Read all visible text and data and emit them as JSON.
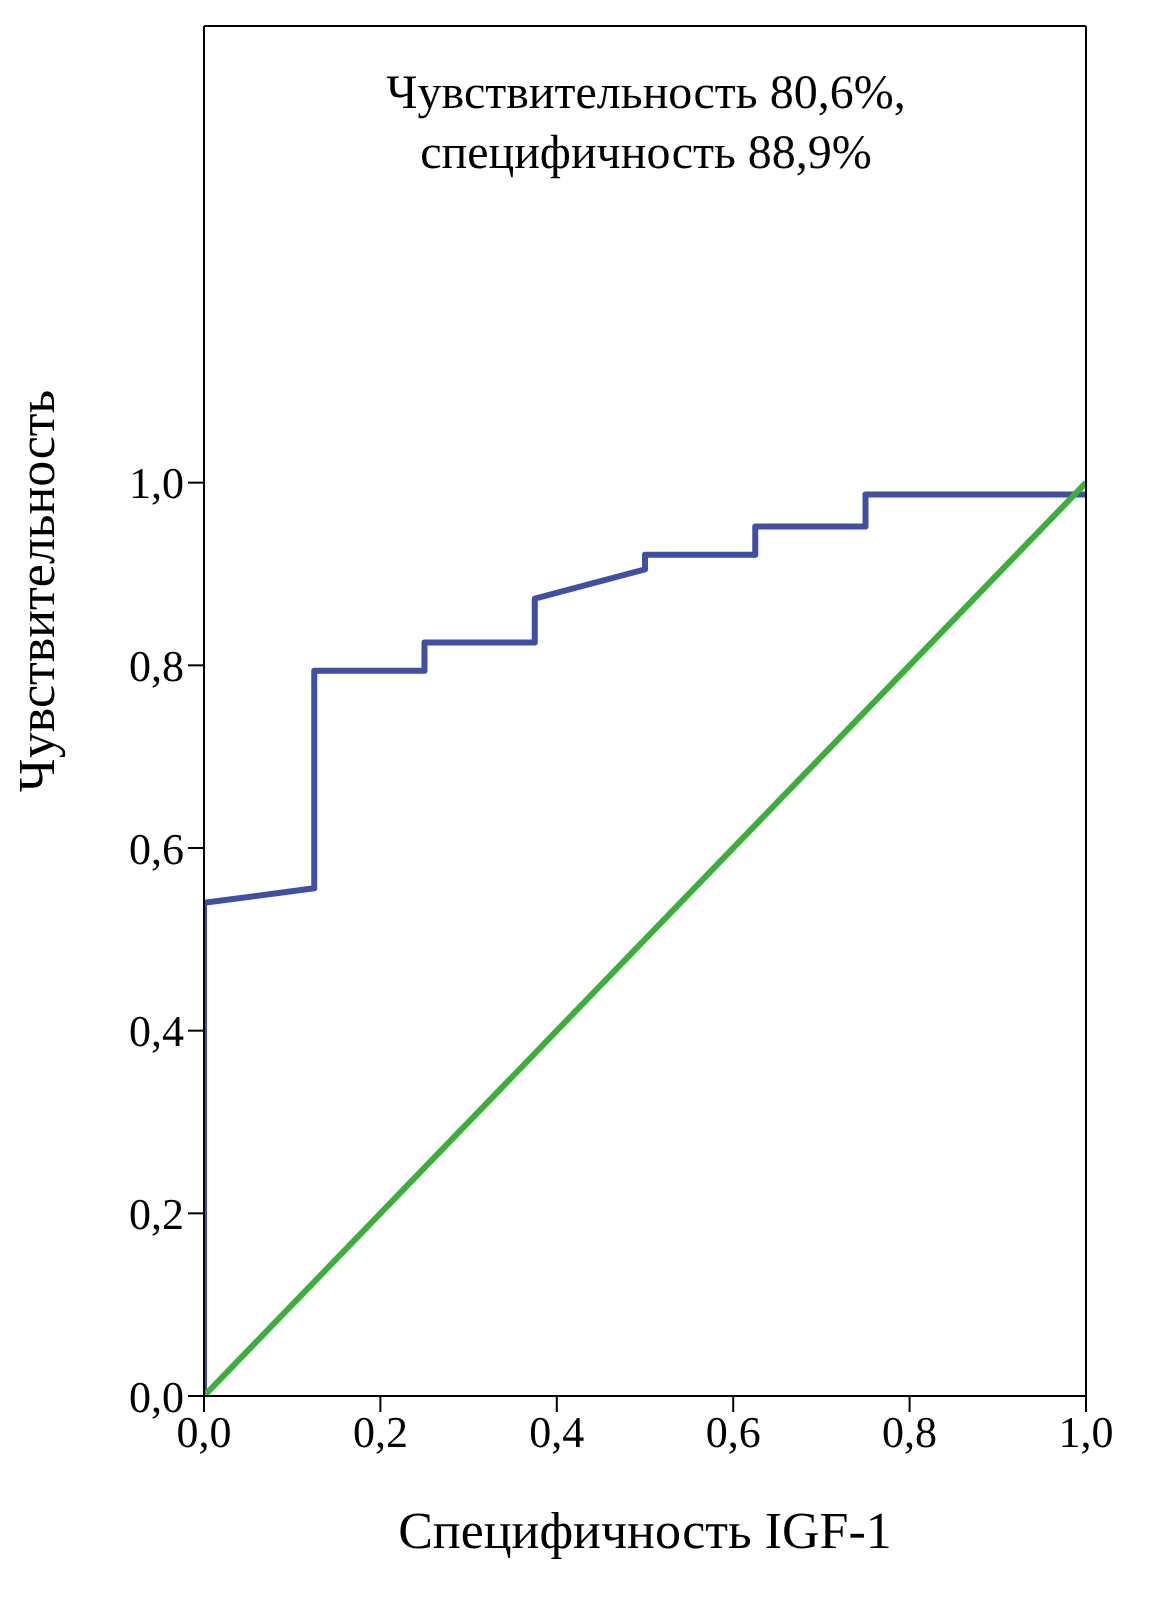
{
  "chart_data": {
    "type": "line",
    "xlabel": "Специфичность IGF-1",
    "ylabel": "Чувствительность",
    "annotations": [
      "Чувствительность 80,6%,",
      "специфичность 88,9%"
    ],
    "series": [
      {
        "color": "#3f4fa3",
        "x": [
          0,
          0,
          0.125,
          0.125,
          0.25,
          0.25,
          0.375,
          0.375,
          0.5,
          0.5,
          0.625,
          0.625,
          0.75,
          0.75,
          1
        ],
        "values": [
          0,
          0.54,
          0.556,
          0.794,
          0.794,
          0.825,
          0.825,
          0.873,
          0.905,
          0.921,
          0.921,
          0.952,
          0.952,
          0.987,
          0.987
        ]
      },
      {
        "color": "#3cae3c",
        "x": [
          0,
          1
        ],
        "values": [
          0,
          1
        ]
      }
    ],
    "xlim": [
      0,
      1
    ],
    "ylim": [
      0,
      1.5
    ],
    "xticks": [
      {
        "value": 0,
        "label": "0,0"
      },
      {
        "value": 0.2,
        "label": "0,2"
      },
      {
        "value": 0.4,
        "label": "0,4"
      },
      {
        "value": 0.6,
        "label": "0,6"
      },
      {
        "value": 0.8,
        "label": "0,8"
      },
      {
        "value": 1,
        "label": "1,0"
      }
    ],
    "yticks": [
      {
        "value": 0,
        "label": "0,0"
      },
      {
        "value": 0.2,
        "label": "0,2"
      },
      {
        "value": 0.4,
        "label": "0,4"
      },
      {
        "value": 0.6,
        "label": "0,6"
      },
      {
        "value": 0.8,
        "label": "0,8"
      },
      {
        "value": 1,
        "label": "1,0"
      }
    ],
    "marker": "none",
    "line_style": "solid"
  }
}
